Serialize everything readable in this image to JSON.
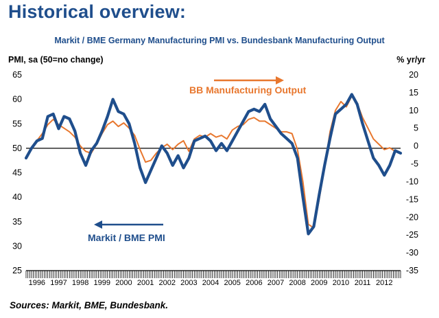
{
  "page": {
    "heading": "Historical overview:",
    "sources": "Sources: Markit, BME, Bundesbank."
  },
  "chart_data": {
    "type": "line",
    "title": "Markit / BME Germany Manufacturing PMI vs. Bundesbank Manufacturing Output",
    "ylabel_left": "PMI, sa (50=no change)",
    "ylabel_right": "% yr/yr",
    "x_range": [
      1996.0,
      2013.25
    ],
    "ylim_left": [
      25,
      65
    ],
    "ylim_right": [
      -35,
      20
    ],
    "yticks_left": [
      25,
      30,
      35,
      40,
      45,
      50,
      55,
      60,
      65
    ],
    "yticks_right": [
      -35,
      -30,
      -25,
      -20,
      -15,
      -10,
      -5,
      0,
      5,
      10,
      15,
      20
    ],
    "xtick_labels": [
      "1996",
      "1997",
      "1998",
      "1999",
      "2000",
      "2001",
      "2002",
      "2003",
      "2004",
      "2005",
      "2006",
      "2007",
      "2008",
      "2009",
      "2010",
      "2011",
      "2012"
    ],
    "reference_line": {
      "axis": "left",
      "value": 50
    },
    "annotations": [
      {
        "text": "BB Manufacturing Output",
        "color": "#e8772e",
        "arrow": "right"
      },
      {
        "text": "Markit / BME PMI",
        "color": "#1f4e8c",
        "arrow": "left"
      }
    ],
    "series": [
      {
        "name": "Markit / BME PMI",
        "axis": "left",
        "color": "#1f4e8c",
        "x": [
          1996.0,
          1996.25,
          1996.5,
          1996.75,
          1997.0,
          1997.25,
          1997.5,
          1997.75,
          1998.0,
          1998.25,
          1998.5,
          1998.75,
          1999.0,
          1999.25,
          1999.5,
          1999.75,
          2000.0,
          2000.25,
          2000.5,
          2000.75,
          2001.0,
          2001.25,
          2001.5,
          2001.75,
          2002.0,
          2002.25,
          2002.5,
          2002.75,
          2003.0,
          2003.25,
          2003.5,
          2003.75,
          2004.0,
          2004.25,
          2004.5,
          2004.75,
          2005.0,
          2005.25,
          2005.5,
          2005.75,
          2006.0,
          2006.25,
          2006.5,
          2006.75,
          2007.0,
          2007.25,
          2007.5,
          2007.75,
          2008.0,
          2008.25,
          2008.5,
          2008.75,
          2009.0,
          2009.25,
          2009.5,
          2009.75,
          2010.0,
          2010.25,
          2010.5,
          2010.75,
          2011.0,
          2011.25,
          2011.5,
          2011.75,
          2012.0,
          2012.25,
          2012.5,
          2012.75,
          2013.0,
          2013.25
        ],
        "values": [
          48.0,
          50.0,
          51.5,
          52.0,
          56.5,
          57.0,
          54.0,
          56.5,
          56.0,
          53.5,
          49.0,
          46.5,
          49.5,
          51.0,
          53.5,
          56.5,
          60.0,
          57.5,
          57.0,
          55.0,
          51.0,
          46.0,
          43.0,
          45.5,
          48.0,
          50.5,
          49.0,
          46.5,
          48.5,
          46.0,
          48.0,
          51.5,
          52.0,
          52.5,
          51.5,
          49.5,
          51.0,
          49.5,
          51.5,
          53.5,
          55.5,
          57.5,
          58.0,
          57.5,
          59.0,
          56.0,
          54.5,
          53.0,
          52.0,
          51.0,
          48.0,
          40.0,
          32.5,
          34.0,
          40.5,
          46.5,
          52.0,
          57.0,
          58.0,
          59.0,
          61.0,
          59.0,
          55.0,
          51.5,
          48.0,
          46.5,
          44.5,
          46.5,
          49.5,
          49.0
        ]
      },
      {
        "name": "BB Manufacturing Output",
        "axis": "right",
        "color": "#e8772e",
        "x": [
          1996.0,
          1996.25,
          1996.5,
          1996.75,
          1997.0,
          1997.25,
          1997.5,
          1997.75,
          1998.0,
          1998.25,
          1998.5,
          1998.75,
          1999.0,
          1999.25,
          1999.5,
          1999.75,
          2000.0,
          2000.25,
          2000.5,
          2000.75,
          2001.0,
          2001.25,
          2001.5,
          2001.75,
          2002.0,
          2002.25,
          2002.5,
          2002.75,
          2003.0,
          2003.25,
          2003.5,
          2003.75,
          2004.0,
          2004.25,
          2004.5,
          2004.75,
          2005.0,
          2005.25,
          2005.5,
          2005.75,
          2006.0,
          2006.25,
          2006.5,
          2006.75,
          2007.0,
          2007.25,
          2007.5,
          2007.75,
          2008.0,
          2008.25,
          2008.5,
          2008.75,
          2009.0,
          2009.25,
          2009.5,
          2009.75,
          2010.0,
          2010.25,
          2010.5,
          2010.75,
          2011.0,
          2011.25,
          2011.5,
          2011.75,
          2012.0,
          2012.25,
          2012.5,
          2012.75,
          2013.0,
          2013.25
        ],
        "values": [
          -3.0,
          -1.0,
          1.5,
          3.5,
          6.0,
          7.5,
          6.0,
          5.0,
          4.0,
          2.5,
          0.0,
          -1.5,
          -2.0,
          0.5,
          3.5,
          6.0,
          7.0,
          5.5,
          6.5,
          5.0,
          3.0,
          -1.0,
          -4.5,
          -4.0,
          -2.0,
          -0.5,
          0.5,
          -1.0,
          0.5,
          1.5,
          -1.5,
          2.0,
          3.0,
          2.5,
          3.5,
          2.5,
          3.0,
          2.0,
          4.5,
          5.5,
          6.0,
          7.5,
          8.0,
          7.0,
          7.0,
          6.0,
          5.0,
          4.0,
          4.0,
          3.5,
          -1.0,
          -10.0,
          -22.0,
          -23.0,
          -15.0,
          -6.0,
          4.0,
          10.0,
          12.5,
          11.0,
          14.0,
          12.0,
          8.0,
          5.0,
          2.0,
          0.5,
          -1.0,
          -0.5,
          -1.5,
          -2.0
        ]
      }
    ]
  }
}
